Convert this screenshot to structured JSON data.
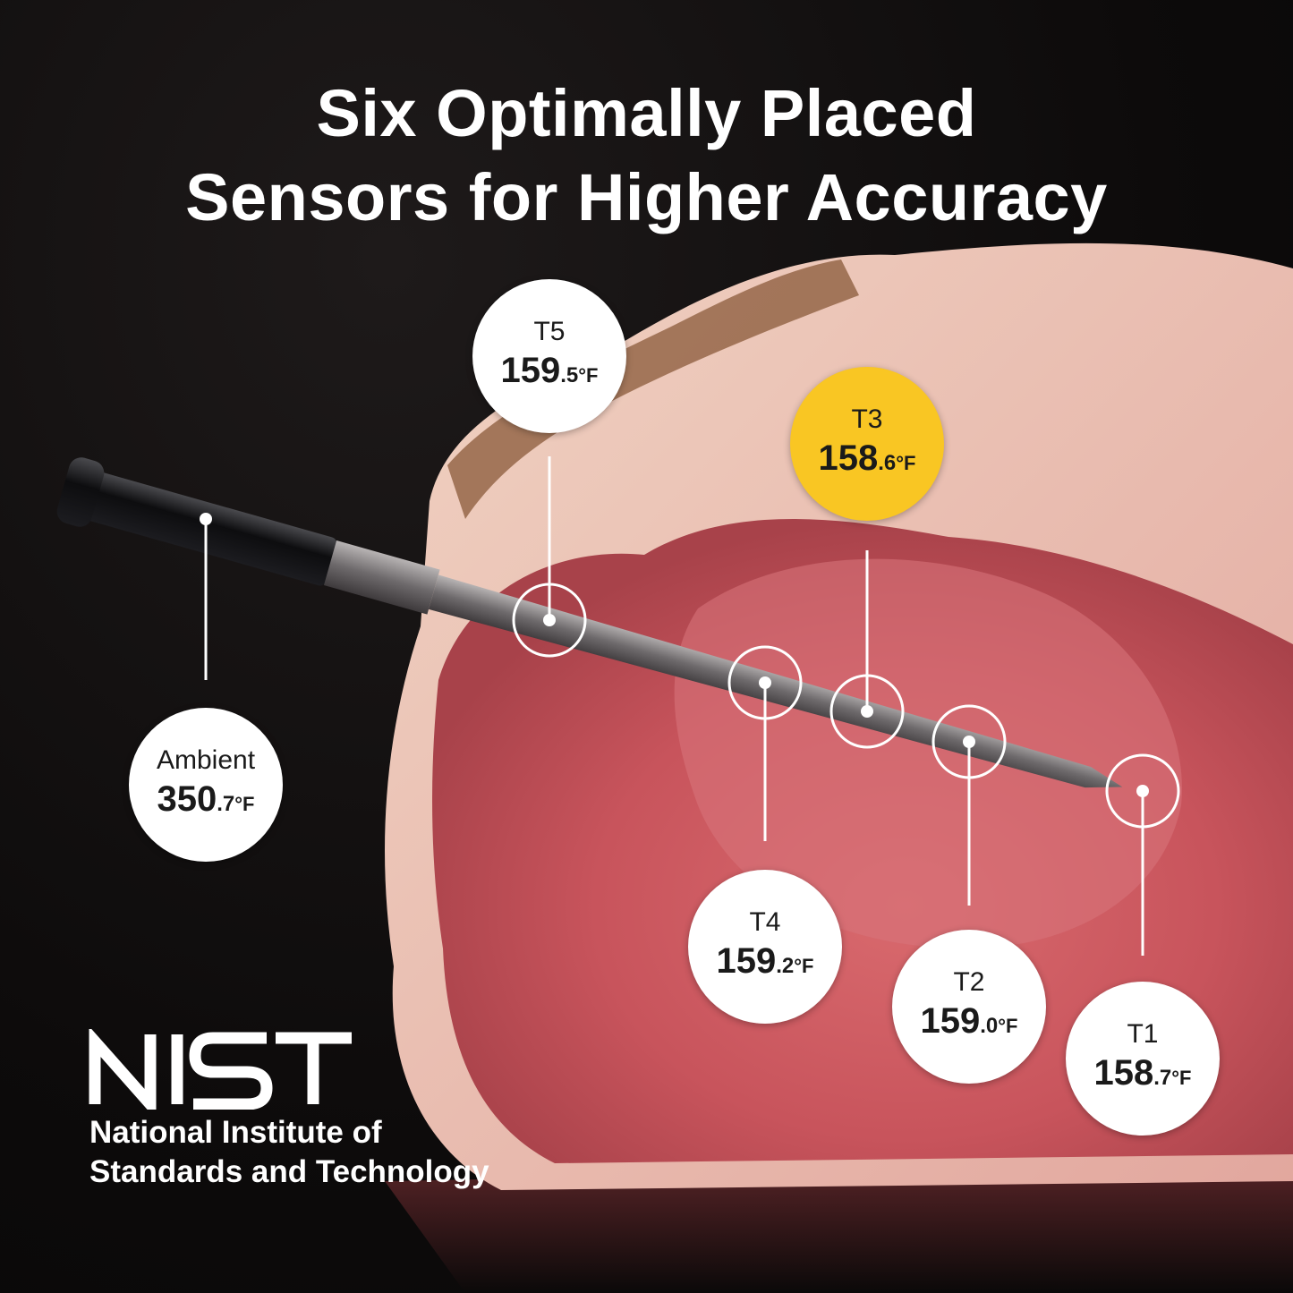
{
  "headline": {
    "line1": "Six Optimally Placed",
    "line2": "Sensors for Higher Accuracy"
  },
  "accent_color": "#f9c623",
  "sensors": [
    {
      "name": "T5",
      "whole": "159",
      "decimal": ".5",
      "unit": "°F"
    },
    {
      "name": "T3",
      "whole": "158",
      "decimal": ".6",
      "unit": "°F",
      "highlighted": true
    },
    {
      "name": "Ambient",
      "whole": "350",
      "decimal": ".7",
      "unit": "°F"
    },
    {
      "name": "T4",
      "whole": "159",
      "decimal": ".2",
      "unit": "°F"
    },
    {
      "name": "T2",
      "whole": "159",
      "decimal": ".0",
      "unit": "°F"
    },
    {
      "name": "T1",
      "whole": "158",
      "decimal": ".7",
      "unit": "°F"
    }
  ],
  "logo": {
    "mark": "NIST",
    "line1": "National Institute of",
    "line2": "Standards and Technology"
  }
}
